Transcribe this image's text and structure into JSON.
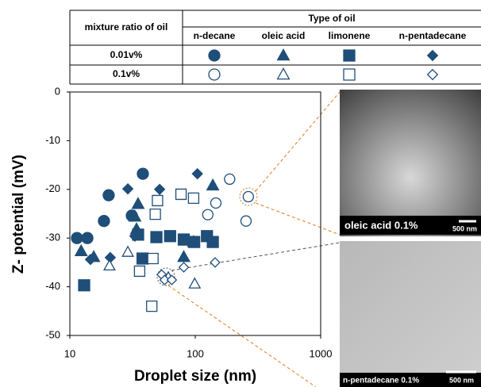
{
  "chart_data": {
    "type": "scatter",
    "x_label": "Droplet size (nm)",
    "y_label": "Z- potential (mV)",
    "xlim": [
      10,
      1000
    ],
    "xticks": [
      10,
      100,
      1000
    ],
    "xscale": "log",
    "ylim": [
      -50,
      0
    ],
    "yticks": [
      0,
      -10,
      -20,
      -30,
      -40,
      -50
    ],
    "legend": {
      "ratio_header": "mixture ratio of oil",
      "oil_header": "Type of oil",
      "oils": [
        "n-decane",
        "oleic acid",
        "limonene",
        "n-pentadecane"
      ],
      "ratios": [
        "0.01v%",
        "0.1v%"
      ]
    },
    "series": [
      {
        "marker": "circle",
        "filled": true,
        "color": "#1f4e79",
        "x": [
          11.4,
          13.8,
          20.4,
          18.7,
          31.2,
          38.2
        ],
        "values": [
          -30,
          -30,
          -21.2,
          -26.5,
          -25.4,
          -16.8
        ]
      },
      {
        "marker": "triangle",
        "filled": true,
        "color": "#1f4e79",
        "x": [
          12.3,
          15.5,
          34,
          33,
          35,
          138,
          97,
          81
        ],
        "values": [
          -32.7,
          -33.9,
          -28.2,
          -25.6,
          -23,
          -19.2,
          -30.8,
          -33.9
        ]
      },
      {
        "marker": "square",
        "filled": true,
        "color": "#1f4e79",
        "x": [
          13,
          38,
          49,
          63,
          81,
          98,
          124,
          138,
          35
        ],
        "values": [
          -39.7,
          -34.2,
          -29.8,
          -29.6,
          -30.3,
          -30.8,
          -29.6,
          -30.8,
          -29.3
        ]
      },
      {
        "marker": "diamond",
        "filled": true,
        "color": "#1f4e79",
        "x": [
          29,
          33,
          52,
          104,
          14.6,
          21
        ],
        "values": [
          -19.9,
          -29.6,
          -20,
          -16.8,
          -34.4,
          -34
        ]
      },
      {
        "marker": "circle",
        "filled": false,
        "color": "#1f4e79",
        "x": [
          126,
          146,
          188,
          265,
          254
        ],
        "values": [
          -25.2,
          -22.8,
          -17.9,
          -21.5,
          -26.5
        ]
      },
      {
        "marker": "triangle",
        "filled": false,
        "color": "#1f4e79",
        "x": [
          20.7,
          29,
          61,
          99
        ],
        "values": [
          -35.7,
          -32.9,
          -38.1,
          -39.4
        ]
      },
      {
        "marker": "square",
        "filled": false,
        "color": "#1f4e79",
        "x": [
          36,
          46,
          50,
          77,
          97,
          45,
          48
        ],
        "values": [
          -36.8,
          -34.2,
          -22.3,
          -21,
          -21.8,
          -44,
          -25.1
        ]
      },
      {
        "marker": "diamond",
        "filled": false,
        "color": "#1f4e79",
        "x": [
          54,
          57,
          65,
          81,
          144
        ],
        "values": [
          -37.5,
          -38.6,
          -38.6,
          -36,
          -35
        ]
      }
    ]
  },
  "images": [
    {
      "caption": "oleic acid 0.1%",
      "scale": "500 nm"
    },
    {
      "caption": "n-pentadecane 0.1%",
      "scale": "500 nm"
    }
  ]
}
